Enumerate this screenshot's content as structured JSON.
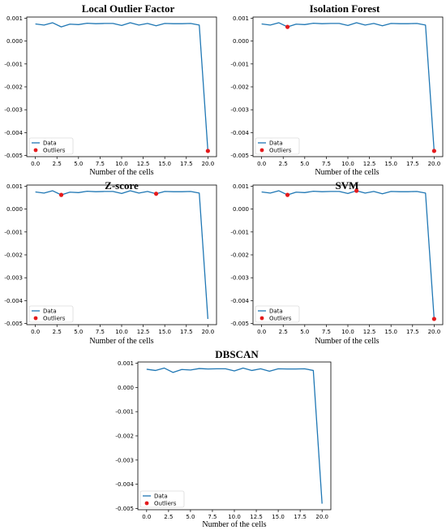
{
  "chart_data": [
    {
      "type": "line",
      "title": "Local Outlier Factor",
      "xlabel": "Number of the cells",
      "ylabel": "",
      "x": [
        0,
        1,
        2,
        3,
        4,
        5,
        6,
        7,
        8,
        9,
        10,
        11,
        12,
        13,
        14,
        15,
        16,
        17,
        18,
        19,
        20
      ],
      "series": [
        {
          "name": "Data",
          "values": [
            0.00075,
            0.0007,
            0.0008,
            0.00062,
            0.00074,
            0.00072,
            0.00078,
            0.00076,
            0.00077,
            0.00077,
            0.00068,
            0.0008,
            0.0007,
            0.00077,
            0.00067,
            0.00077,
            0.00076,
            0.00076,
            0.00077,
            0.0007,
            -0.0048
          ]
        }
      ],
      "outliers": {
        "name": "Outliers",
        "x": [
          20
        ],
        "y": [
          -0.0048
        ]
      },
      "xlim": [
        -1,
        21
      ],
      "ylim": [
        -0.00505,
        0.00105
      ],
      "xticks": [
        0.0,
        2.5,
        5.0,
        7.5,
        10.0,
        12.5,
        15.0,
        17.5,
        20.0
      ],
      "xtick_labels": [
        "0.0",
        "2.5",
        "5.0",
        "7.5",
        "10.0",
        "12.5",
        "15.0",
        "17.5",
        "20.0"
      ],
      "yticks": [
        0.001,
        0.0,
        -0.001,
        -0.002,
        -0.003,
        -0.004,
        -0.005
      ],
      "ytick_labels": [
        "0.001",
        "0.000",
        "-0.001",
        "-0.002",
        "-0.003",
        "-0.004",
        "-0.005"
      ],
      "legend_position": "lower-left",
      "colors": {
        "line": "#1f77b4",
        "outlier": "#e41a1c"
      }
    },
    {
      "type": "line",
      "title": "Isolation Forest",
      "xlabel": "Number of the cells",
      "ylabel": "",
      "x": [
        0,
        1,
        2,
        3,
        4,
        5,
        6,
        7,
        8,
        9,
        10,
        11,
        12,
        13,
        14,
        15,
        16,
        17,
        18,
        19,
        20
      ],
      "series": [
        {
          "name": "Data",
          "values": [
            0.00075,
            0.0007,
            0.0008,
            0.00062,
            0.00074,
            0.00072,
            0.00078,
            0.00076,
            0.00077,
            0.00077,
            0.00068,
            0.0008,
            0.0007,
            0.00077,
            0.00067,
            0.00077,
            0.00076,
            0.00076,
            0.00077,
            0.0007,
            -0.0048
          ]
        }
      ],
      "outliers": {
        "name": "Outliers",
        "x": [
          3,
          20
        ],
        "y": [
          0.00062,
          -0.0048
        ]
      },
      "xlim": [
        -1,
        21
      ],
      "ylim": [
        -0.00505,
        0.00105
      ],
      "xticks": [
        0.0,
        2.5,
        5.0,
        7.5,
        10.0,
        12.5,
        15.0,
        17.5,
        20.0
      ],
      "xtick_labels": [
        "0.0",
        "2.5",
        "5.0",
        "7.5",
        "10.0",
        "12.5",
        "15.0",
        "17.5",
        "20.0"
      ],
      "yticks": [
        0.001,
        0.0,
        -0.001,
        -0.002,
        -0.003,
        -0.004,
        -0.005
      ],
      "ytick_labels": [
        "0.001",
        "0.000",
        "-0.001",
        "-0.002",
        "-0.003",
        "-0.004",
        "-0.005"
      ],
      "legend_position": "lower-left",
      "colors": {
        "line": "#1f77b4",
        "outlier": "#e41a1c"
      }
    },
    {
      "type": "line",
      "title": "Z-score",
      "xlabel": "Number of the cells",
      "ylabel": "",
      "x": [
        0,
        1,
        2,
        3,
        4,
        5,
        6,
        7,
        8,
        9,
        10,
        11,
        12,
        13,
        14,
        15,
        16,
        17,
        18,
        19,
        20
      ],
      "series": [
        {
          "name": "Data",
          "values": [
            0.00075,
            0.0007,
            0.0008,
            0.00062,
            0.00074,
            0.00072,
            0.00078,
            0.00076,
            0.00077,
            0.00077,
            0.00068,
            0.0008,
            0.0007,
            0.00077,
            0.00067,
            0.00077,
            0.00076,
            0.00076,
            0.00077,
            0.0007,
            -0.0048
          ]
        }
      ],
      "outliers": {
        "name": "Outliers",
        "x": [
          3,
          14
        ],
        "y": [
          0.00062,
          0.00067
        ]
      },
      "xlim": [
        -1,
        21
      ],
      "ylim": [
        -0.00505,
        0.00105
      ],
      "xticks": [
        0.0,
        2.5,
        5.0,
        7.5,
        10.0,
        12.5,
        15.0,
        17.5,
        20.0
      ],
      "xtick_labels": [
        "0.0",
        "2.5",
        "5.0",
        "7.5",
        "10.0",
        "12.5",
        "15.0",
        "17.5",
        "20.0"
      ],
      "yticks": [
        0.001,
        0.0,
        -0.001,
        -0.002,
        -0.003,
        -0.004,
        -0.005
      ],
      "ytick_labels": [
        "0.001",
        "0.000",
        "-0.001",
        "-0.002",
        "-0.003",
        "-0.004",
        "-0.005"
      ],
      "legend_position": "lower-left",
      "colors": {
        "line": "#1f77b4",
        "outlier": "#e41a1c"
      }
    },
    {
      "type": "line",
      "title": "SVM",
      "xlabel": "Number of the cells",
      "ylabel": "",
      "x": [
        0,
        1,
        2,
        3,
        4,
        5,
        6,
        7,
        8,
        9,
        10,
        11,
        12,
        13,
        14,
        15,
        16,
        17,
        18,
        19,
        20
      ],
      "series": [
        {
          "name": "Data",
          "values": [
            0.00075,
            0.0007,
            0.0008,
            0.00062,
            0.00074,
            0.00072,
            0.00078,
            0.00076,
            0.00077,
            0.00077,
            0.00068,
            0.0008,
            0.0007,
            0.00077,
            0.00067,
            0.00077,
            0.00076,
            0.00076,
            0.00077,
            0.0007,
            -0.0048
          ]
        }
      ],
      "outliers": {
        "name": "Outliers",
        "x": [
          3,
          11,
          20
        ],
        "y": [
          0.00062,
          0.0008,
          -0.0048
        ]
      },
      "xlim": [
        -1,
        21
      ],
      "ylim": [
        -0.00505,
        0.00105
      ],
      "xticks": [
        0.0,
        2.5,
        5.0,
        7.5,
        10.0,
        12.5,
        15.0,
        17.5,
        20.0
      ],
      "xtick_labels": [
        "0.0",
        "2.5",
        "5.0",
        "7.5",
        "10.0",
        "12.5",
        "15.0",
        "17.5",
        "20.0"
      ],
      "yticks": [
        0.001,
        0.0,
        -0.001,
        -0.002,
        -0.003,
        -0.004,
        -0.005
      ],
      "ytick_labels": [
        "0.001",
        "0.000",
        "-0.001",
        "-0.002",
        "-0.003",
        "-0.004",
        "-0.005"
      ],
      "legend_position": "lower-left",
      "colors": {
        "line": "#1f77b4",
        "outlier": "#e41a1c"
      }
    },
    {
      "type": "line",
      "title": "DBSCAN",
      "xlabel": "Number of the cells",
      "ylabel": "",
      "x": [
        0,
        1,
        2,
        3,
        4,
        5,
        6,
        7,
        8,
        9,
        10,
        11,
        12,
        13,
        14,
        15,
        16,
        17,
        18,
        19,
        20
      ],
      "series": [
        {
          "name": "Data",
          "values": [
            0.00075,
            0.0007,
            0.0008,
            0.00062,
            0.00074,
            0.00072,
            0.00078,
            0.00076,
            0.00077,
            0.00077,
            0.00068,
            0.0008,
            0.0007,
            0.00077,
            0.00067,
            0.00077,
            0.00076,
            0.00076,
            0.00077,
            0.0007,
            -0.0048
          ]
        }
      ],
      "outliers": {
        "name": "Outliers",
        "x": [],
        "y": []
      },
      "xlim": [
        -1,
        21
      ],
      "ylim": [
        -0.00505,
        0.00105
      ],
      "xticks": [
        0.0,
        2.5,
        5.0,
        7.5,
        10.0,
        12.5,
        15.0,
        17.5,
        20.0
      ],
      "xtick_labels": [
        "0.0",
        "2.5",
        "5.0",
        "7.5",
        "10.0",
        "12.5",
        "15.0",
        "17.5",
        "20.0"
      ],
      "yticks": [
        0.001,
        0.0,
        -0.001,
        -0.002,
        -0.003,
        -0.004,
        -0.005
      ],
      "ytick_labels": [
        "0.001",
        "0.000",
        "-0.001",
        "-0.002",
        "-0.003",
        "-0.004",
        "-0.005"
      ],
      "legend_position": "lower-left",
      "colors": {
        "line": "#1f77b4",
        "outlier": "#e41a1c"
      }
    }
  ]
}
